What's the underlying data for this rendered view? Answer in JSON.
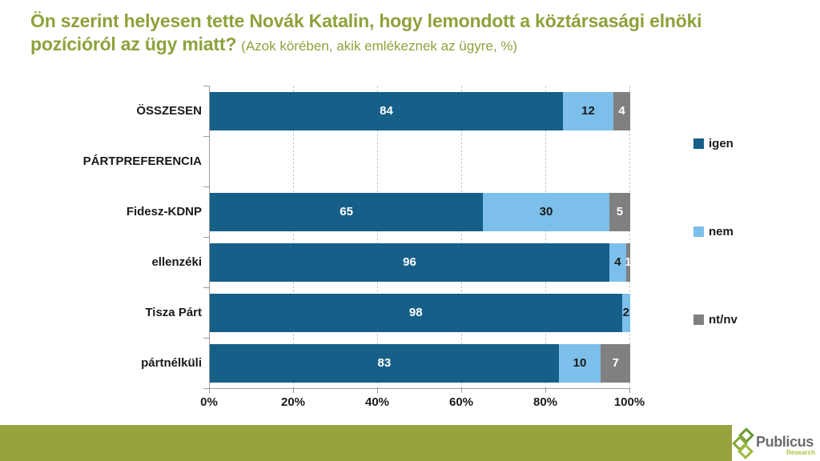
{
  "title": {
    "main": "Ön szerint helyesen tette Novák Katalin, hogy lemondott a köztársasági elnöki pozícióról az ügy miatt?",
    "sub": "(Azok körében, akik emlékeznek az ügyre, %)"
  },
  "chart_data": {
    "type": "bar",
    "orientation": "horizontal",
    "stacked": true,
    "unit": "%",
    "categories": [
      "ÖSSZESEN",
      "PÁRTPREFERENCIA",
      "Fidesz-KDNP",
      "ellenzéki",
      "Tisza Párt",
      "pártnélküli"
    ],
    "series": [
      {
        "name": "igen",
        "color": "#155F88",
        "label_color": "#FFFFFF",
        "values": [
          84,
          null,
          65,
          96,
          98,
          83
        ]
      },
      {
        "name": "nem",
        "color": "#7CBFEA",
        "label_color": "#1A1A1A",
        "values": [
          12,
          null,
          30,
          4,
          2,
          10
        ]
      },
      {
        "name": "nt/nv",
        "color": "#808080",
        "label_color": "#FFFFFF",
        "values": [
          4,
          null,
          5,
          1,
          0,
          7
        ]
      }
    ],
    "x_ticks": [
      "0%",
      "20%",
      "40%",
      "60%",
      "80%",
      "100%"
    ],
    "xlim": [
      0,
      100
    ],
    "grid": "dashed-vertical",
    "legend_position": "right"
  },
  "footer": {
    "brand": "Publicus",
    "brand_sub": "Research",
    "bar_color": "#98A33E"
  },
  "colors": {
    "title": "#8DA23B",
    "axis": "#9C9C9C",
    "gridline": "#C9C9C9",
    "text": "#1A1A1A"
  }
}
